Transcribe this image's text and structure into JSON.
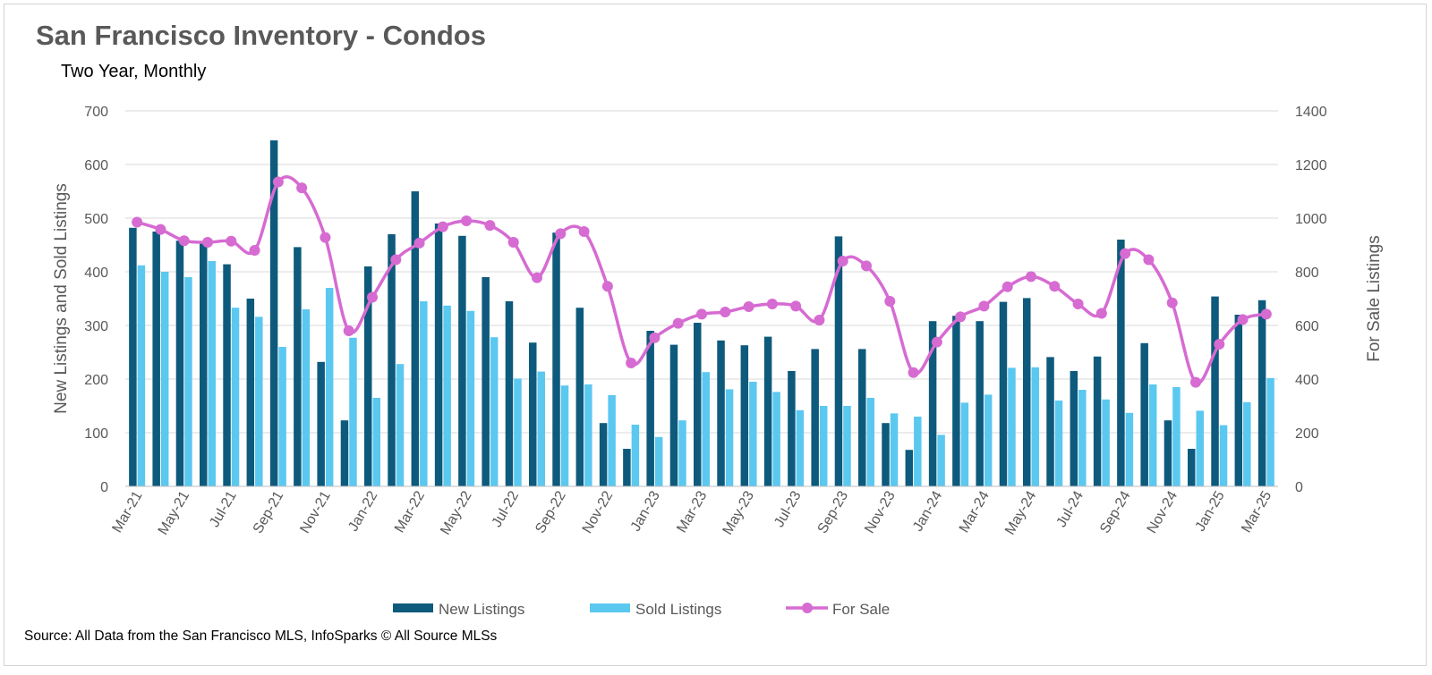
{
  "title": "San Francisco Inventory - Condos",
  "subtitle": "Two Year, Monthly",
  "source": "Source: All Data from the San Francisco MLS, InfoSparks © All Source MLSs",
  "chart_data": {
    "type": "bar",
    "title": "San Francisco Inventory - Condos",
    "subtitle": "Two Year, Monthly",
    "ylabel": "New Listings and Sold Listings",
    "y2label": "For Sale Listings",
    "ylim": [
      0,
      700
    ],
    "y2lim": [
      0,
      1400
    ],
    "yticks": [
      "0",
      "100",
      "200",
      "300",
      "400",
      "500",
      "600",
      "700"
    ],
    "y2ticks": [
      "0",
      "200",
      "400",
      "600",
      "800",
      "1000",
      "1200",
      "1400"
    ],
    "grid": true,
    "legend_position": "bottom",
    "categories": [
      "Mar-21",
      "Apr-21",
      "May-21",
      "Jun-21",
      "Jul-21",
      "Aug-21",
      "Sep-21",
      "Oct-21",
      "Nov-21",
      "Dec-21",
      "Jan-22",
      "Feb-22",
      "Mar-22",
      "Apr-22",
      "May-22",
      "Jun-22",
      "Jul-22",
      "Aug-22",
      "Sep-22",
      "Oct-22",
      "Nov-22",
      "Dec-22",
      "Jan-23",
      "Feb-23",
      "Mar-23",
      "Apr-23",
      "May-23",
      "Jun-23",
      "Jul-23",
      "Aug-23",
      "Sep-23",
      "Oct-23",
      "Nov-23",
      "Dec-23",
      "Jan-24",
      "Feb-24",
      "Mar-24",
      "Apr-24",
      "May-24",
      "Jun-24",
      "Jul-24",
      "Aug-24",
      "Sep-24",
      "Oct-24",
      "Nov-24",
      "Dec-24",
      "Jan-25",
      "Feb-25",
      "Mar-25"
    ],
    "tick_labels": [
      "Mar-21",
      "May-21",
      "Jul-21",
      "Sep-21",
      "Nov-21",
      "Jan-22",
      "Mar-22",
      "May-22",
      "Jul-22",
      "Sep-22",
      "Nov-22",
      "Jan-23",
      "Mar-23",
      "May-23",
      "Jul-23",
      "Sep-23",
      "Nov-23",
      "Jan-24",
      "Mar-24",
      "May-24",
      "Jul-24",
      "Sep-24",
      "Nov-24",
      "Jan-25",
      "Mar-25"
    ],
    "series": [
      {
        "name": "New Listings",
        "type": "bar",
        "axis": "left",
        "color": "#0e5a7c",
        "values": [
          482,
          475,
          458,
          455,
          414,
          350,
          645,
          446,
          232,
          123,
          410,
          470,
          550,
          490,
          467,
          390,
          345,
          268,
          473,
          333,
          118,
          70,
          290,
          264,
          305,
          272,
          263,
          279,
          215,
          256,
          466,
          256,
          118,
          68,
          308,
          318,
          308,
          344,
          351,
          241,
          215,
          242,
          460,
          267,
          123,
          70,
          354,
          320,
          347
        ]
      },
      {
        "name": "Sold Listings",
        "type": "bar",
        "axis": "left",
        "color": "#5bc8f0",
        "values": [
          412,
          400,
          390,
          420,
          333,
          316,
          260,
          330,
          370,
          277,
          165,
          228,
          345,
          337,
          327,
          278,
          201,
          214,
          188,
          190,
          170,
          115,
          92,
          123,
          213,
          181,
          195,
          176,
          142,
          150,
          150,
          165,
          136,
          130,
          96,
          156,
          171,
          221,
          222,
          160,
          180,
          162,
          137,
          190,
          185,
          141,
          114,
          157,
          202
        ]
      },
      {
        "name": "For Sale",
        "type": "line",
        "axis": "right",
        "color": "#d66bd2",
        "values": [
          985,
          958,
          916,
          910,
          914,
          880,
          1135,
          1113,
          928,
          580,
          705,
          845,
          907,
          968,
          990,
          973,
          910,
          778,
          942,
          950,
          746,
          460,
          554,
          608,
          642,
          650,
          670,
          680,
          672,
          620,
          840,
          822,
          690,
          424,
          538,
          632,
          672,
          744,
          782,
          746,
          680,
          645,
          868,
          845,
          684,
          388,
          530,
          622,
          642
        ]
      }
    ]
  }
}
